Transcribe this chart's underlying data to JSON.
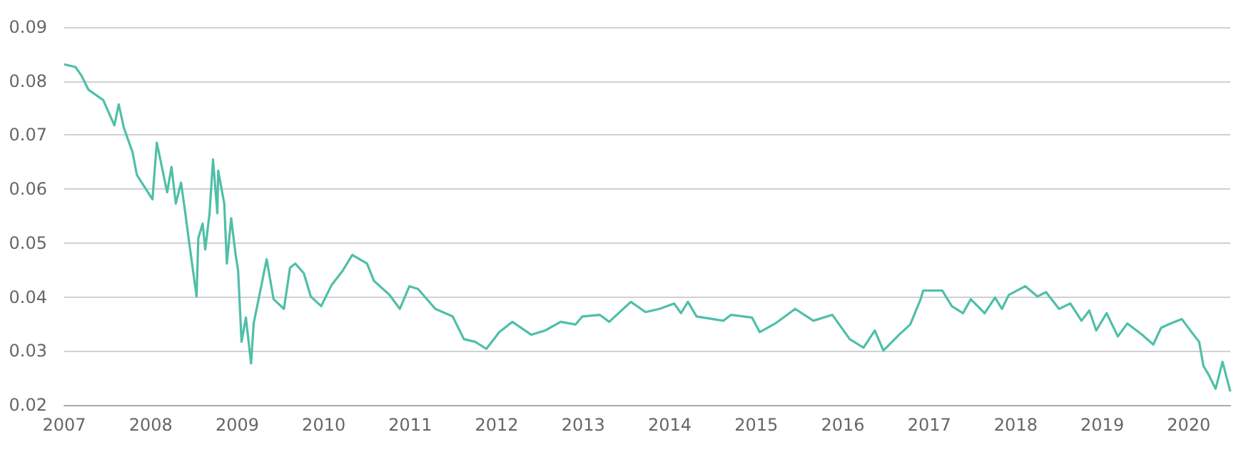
{
  "chart_data": {
    "type": "line",
    "x": [
      2007.0,
      2007.13,
      2007.2,
      2007.28,
      2007.45,
      2007.58,
      2007.63,
      2007.69,
      2007.79,
      2007.84,
      2008.02,
      2008.07,
      2008.19,
      2008.24,
      2008.29,
      2008.35,
      2008.4,
      2008.45,
      2008.53,
      2008.55,
      2008.6,
      2008.63,
      2008.68,
      2008.72,
      2008.77,
      2008.78,
      2008.85,
      2008.88,
      2008.93,
      2008.98,
      2009.01,
      2009.05,
      2009.1,
      2009.16,
      2009.19,
      2009.28,
      2009.34,
      2009.42,
      2009.54,
      2009.61,
      2009.67,
      2009.77,
      2009.85,
      2009.97,
      2010.09,
      2010.22,
      2010.33,
      2010.5,
      2010.58,
      2010.76,
      2010.88,
      2010.99,
      2011.09,
      2011.29,
      2011.49,
      2011.62,
      2011.75,
      2011.88,
      2012.03,
      2012.18,
      2012.4,
      2012.56,
      2012.74,
      2012.91,
      2012.99,
      2013.19,
      2013.3,
      2013.55,
      2013.72,
      2013.88,
      2014.05,
      2014.13,
      2014.21,
      2014.31,
      2014.62,
      2014.71,
      2014.95,
      2015.04,
      2015.22,
      2015.45,
      2015.66,
      2015.88,
      2016.08,
      2016.24,
      2016.37,
      2016.47,
      2016.65,
      2016.78,
      2016.9,
      2016.93,
      2017.15,
      2017.26,
      2017.39,
      2017.48,
      2017.64,
      2017.76,
      2017.84,
      2017.92,
      2018.11,
      2018.25,
      2018.35,
      2018.5,
      2018.63,
      2018.76,
      2018.85,
      2018.93,
      2019.05,
      2019.18,
      2019.29,
      2019.46,
      2019.59,
      2019.68,
      2019.79,
      2019.92,
      2020.07,
      2020.12,
      2020.17,
      2020.23,
      2020.31,
      2020.39,
      2020.48
    ],
    "series": [
      {
        "color": "#4fbfa8",
        "values": [
          0.0831,
          0.0826,
          0.081,
          0.0784,
          0.0765,
          0.0718,
          0.0757,
          0.0713,
          0.0668,
          0.0626,
          0.0581,
          0.0686,
          0.0594,
          0.0641,
          0.0573,
          0.0612,
          0.0555,
          0.0494,
          0.0401,
          0.0509,
          0.0536,
          0.0488,
          0.0555,
          0.0655,
          0.0555,
          0.0634,
          0.0573,
          0.0462,
          0.0546,
          0.048,
          0.0449,
          0.0317,
          0.0362,
          0.0277,
          0.0351,
          0.0422,
          0.047,
          0.0396,
          0.0378,
          0.0454,
          0.0462,
          0.0444,
          0.0401,
          0.0383,
          0.0422,
          0.0449,
          0.0478,
          0.0462,
          0.043,
          0.0404,
          0.0378,
          0.042,
          0.0415,
          0.0378,
          0.0364,
          0.0322,
          0.0317,
          0.0304,
          0.0335,
          0.0354,
          0.033,
          0.0338,
          0.0354,
          0.0349,
          0.0364,
          0.0367,
          0.0354,
          0.0391,
          0.0372,
          0.0378,
          0.0388,
          0.037,
          0.0391,
          0.0364,
          0.0356,
          0.0367,
          0.0362,
          0.0335,
          0.0351,
          0.0378,
          0.0356,
          0.0367,
          0.0322,
          0.0306,
          0.0338,
          0.0301,
          0.033,
          0.0349,
          0.0396,
          0.0412,
          0.0412,
          0.0383,
          0.037,
          0.0396,
          0.037,
          0.0399,
          0.0378,
          0.0404,
          0.042,
          0.0401,
          0.0409,
          0.0378,
          0.0388,
          0.0356,
          0.0375,
          0.0338,
          0.037,
          0.0327,
          0.0351,
          0.033,
          0.0312,
          0.0343,
          0.0351,
          0.0359,
          0.0327,
          0.0317,
          0.0272,
          0.0256,
          0.023,
          0.028,
          0.0225
        ]
      }
    ],
    "xlim": [
      2007,
      2020.48
    ],
    "xticks": [
      {
        "value": 2007,
        "label": "2007"
      },
      {
        "value": 2008,
        "label": "2008"
      },
      {
        "value": 2009,
        "label": "2009"
      },
      {
        "value": 2010,
        "label": "2010"
      },
      {
        "value": 2011,
        "label": "2011"
      },
      {
        "value": 2012,
        "label": "2012"
      },
      {
        "value": 2013,
        "label": "2013"
      },
      {
        "value": 2014,
        "label": "2014"
      },
      {
        "value": 2015,
        "label": "2015"
      },
      {
        "value": 2016,
        "label": "2016"
      },
      {
        "value": 2017,
        "label": "2017"
      },
      {
        "value": 2018,
        "label": "2018"
      },
      {
        "value": 2019,
        "label": "2019"
      },
      {
        "value": 2020,
        "label": "2020"
      }
    ],
    "ylim": [
      0.02,
      0.09
    ],
    "yticks": [
      {
        "value": 0.02,
        "label": "0.02"
      },
      {
        "value": 0.03,
        "label": "0.03"
      },
      {
        "value": 0.04,
        "label": "0.04"
      },
      {
        "value": 0.05,
        "label": "0.05"
      },
      {
        "value": 0.06,
        "label": "0.06"
      },
      {
        "value": 0.07,
        "label": "0.07"
      },
      {
        "value": 0.08,
        "label": "0.08"
      },
      {
        "value": 0.09,
        "label": "0.09"
      }
    ],
    "grid": "y",
    "line_style": "solid"
  }
}
